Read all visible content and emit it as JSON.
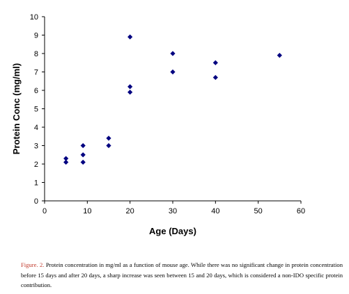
{
  "chart_data": {
    "type": "scatter",
    "xlabel": "Age (Days)",
    "ylabel": "Protein Conc (mg/ml)",
    "xlim": [
      0,
      60
    ],
    "ylim": [
      0,
      10
    ],
    "x_ticks": [
      "0",
      "10",
      "20",
      "30",
      "40",
      "50",
      "60"
    ],
    "y_ticks": [
      "0",
      "1",
      "2",
      "3",
      "4",
      "5",
      "6",
      "7",
      "8",
      "9",
      "10"
    ],
    "grid": false,
    "legend": "none",
    "marker": "diamond",
    "marker_color": "#000080",
    "points": [
      {
        "x": 5,
        "y": 2.1
      },
      {
        "x": 5,
        "y": 2.3
      },
      {
        "x": 9,
        "y": 2.1
      },
      {
        "x": 9,
        "y": 2.5
      },
      {
        "x": 9,
        "y": 3.0
      },
      {
        "x": 15,
        "y": 3.0
      },
      {
        "x": 15,
        "y": 3.4
      },
      {
        "x": 20,
        "y": 5.9
      },
      {
        "x": 20,
        "y": 6.2
      },
      {
        "x": 20,
        "y": 8.9
      },
      {
        "x": 30,
        "y": 7.0
      },
      {
        "x": 30,
        "y": 8.0
      },
      {
        "x": 40,
        "y": 6.7
      },
      {
        "x": 40,
        "y": 7.5
      },
      {
        "x": 55,
        "y": 7.9
      }
    ]
  },
  "caption": {
    "label": "Figure. 2.",
    "text": "Protein concentration in mg/ml as a function of mouse age. While there was no significant change in protein concentration before 15 days and after 20 days, a sharp increase was seen between 15 and 20 days, which is considered a non-IDO specific protein contribution."
  },
  "colors": {
    "label_color": "#c0392b"
  }
}
